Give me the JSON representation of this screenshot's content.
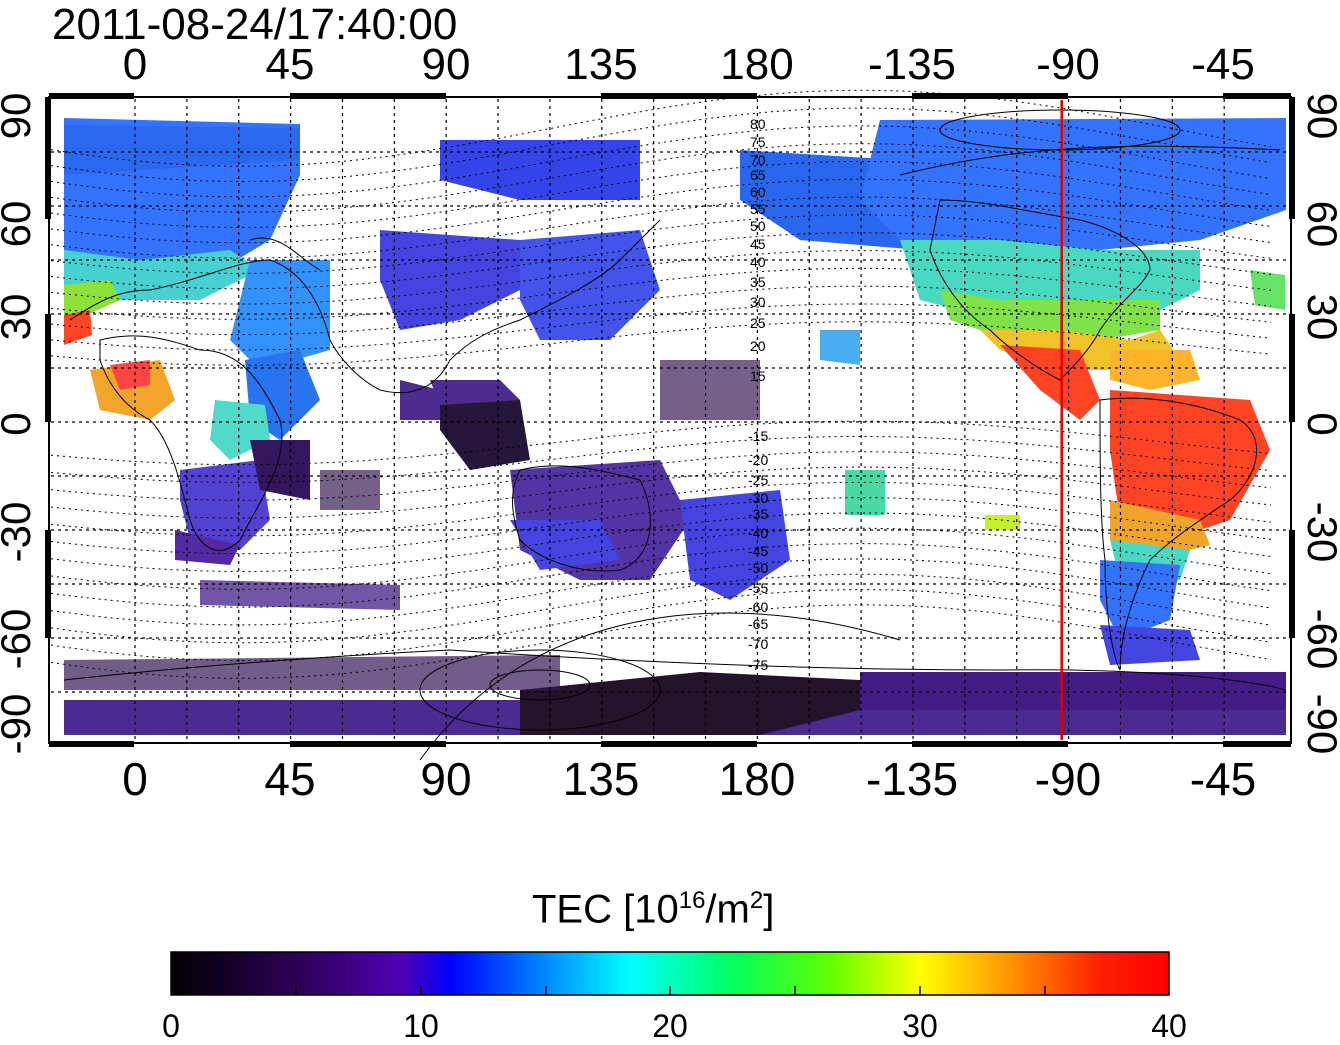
{
  "timestamp": "2011-08-24/17:40:00",
  "map": {
    "top_lon_labels": [
      "0",
      "45",
      "90",
      "135",
      "180",
      "-135",
      "-90",
      "-45"
    ],
    "bottom_lon_labels": [
      "0",
      "45",
      "90",
      "135",
      "180",
      "-135",
      "-90",
      "-45"
    ],
    "left_lat_labels": [
      "90",
      "60",
      "30",
      "0",
      "-30",
      "-60",
      "-90"
    ],
    "right_lat_labels": [
      "90",
      "60",
      "30",
      "0",
      "-30",
      "-60",
      "-90"
    ],
    "magnetic_lat_labels_north": [
      "80",
      "75",
      "70",
      "65",
      "60",
      "55",
      "50",
      "45",
      "40",
      "35",
      "30",
      "25",
      "20",
      "15"
    ],
    "magnetic_lat_labels_south": [
      "-15",
      "-20",
      "-25",
      "-30",
      "-35",
      "-40",
      "-45",
      "-50",
      "-55",
      "-60",
      "-65",
      "-70",
      "-75"
    ],
    "reference_meridian_lon": -92,
    "reference_meridian_color": "#e00000"
  },
  "colorbar": {
    "title_prefix": "TEC  [10",
    "title_sup": "16",
    "title_mid": "/m",
    "title_sup2": "2",
    "title_suffix": "]",
    "ticks": [
      "0",
      "10",
      "20",
      "30",
      "40"
    ],
    "min": 0,
    "max": 40,
    "colors": [
      "#000000",
      "#3a006a",
      "#0000ff",
      "#00ffff",
      "#00ff00",
      "#ffff00",
      "#ff8000",
      "#ff0000"
    ]
  }
}
